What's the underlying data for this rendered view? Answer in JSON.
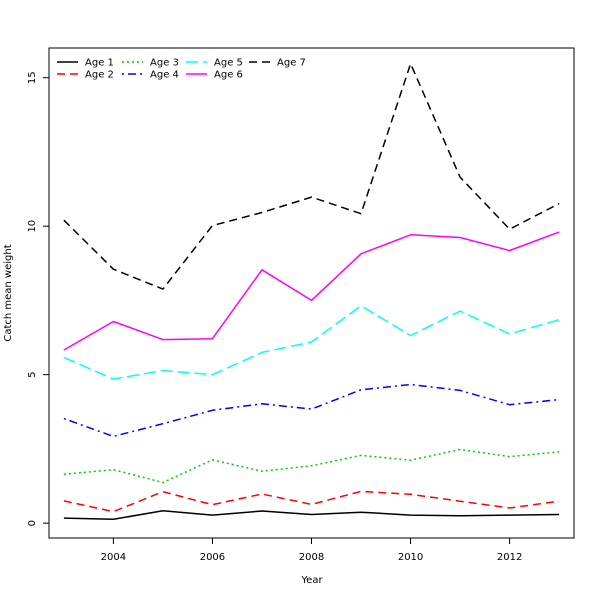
{
  "chart_data": {
    "type": "line",
    "title": "",
    "xlabel": "Year",
    "ylabel": "Catch mean weight",
    "x": [
      2003,
      2004,
      2005,
      2006,
      2007,
      2008,
      2009,
      2010,
      2011,
      2012,
      2013
    ],
    "xlim": [
      2002.7,
      2013.3
    ],
    "ylim": [
      -0.5,
      16.0
    ],
    "x_ticks": [
      "2004",
      "2006",
      "2008",
      "2010",
      "2012"
    ],
    "y_ticks": [
      "0",
      "5",
      "10",
      "15"
    ],
    "grid": false,
    "legend_position": "top-left",
    "series": [
      {
        "name": "Age 1",
        "color": "#000000",
        "dash": "solid",
        "values": [
          0.17,
          0.13,
          0.42,
          0.27,
          0.41,
          0.29,
          0.37,
          0.27,
          0.25,
          0.27,
          0.29
        ]
      },
      {
        "name": "Age 2",
        "color": "#ff0000",
        "dash": "dashed",
        "values": [
          0.75,
          0.39,
          1.06,
          0.62,
          0.98,
          0.63,
          1.07,
          0.97,
          0.74,
          0.51,
          0.74
        ]
      },
      {
        "name": "Age 3",
        "color": "#00cd00",
        "dash": "dotted",
        "values": [
          1.65,
          1.8,
          1.37,
          2.13,
          1.75,
          1.93,
          2.28,
          2.12,
          2.48,
          2.24,
          2.4
        ]
      },
      {
        "name": "Age 4",
        "color": "#0000ff",
        "dash": "dotdash",
        "values": [
          3.52,
          2.92,
          3.35,
          3.8,
          4.02,
          3.84,
          4.49,
          4.67,
          4.47,
          3.99,
          4.16
        ]
      },
      {
        "name": "Age 5",
        "color": "#00ffff",
        "dash": "longdash",
        "values": [
          5.58,
          4.85,
          5.14,
          5.0,
          5.75,
          6.1,
          7.32,
          6.32,
          7.14,
          6.37,
          6.85
        ]
      },
      {
        "name": "Age 6",
        "color": "#ff00ff",
        "dash": "solid",
        "values": [
          5.83,
          6.79,
          6.18,
          6.21,
          8.53,
          7.5,
          9.07,
          9.71,
          9.62,
          9.18,
          9.8
        ]
      },
      {
        "name": "Age 7",
        "color": "#000000",
        "dash": "dashed",
        "values": [
          10.2,
          8.55,
          7.88,
          10.02,
          10.46,
          10.98,
          10.42,
          15.47,
          11.65,
          9.9,
          10.76
        ]
      }
    ]
  }
}
